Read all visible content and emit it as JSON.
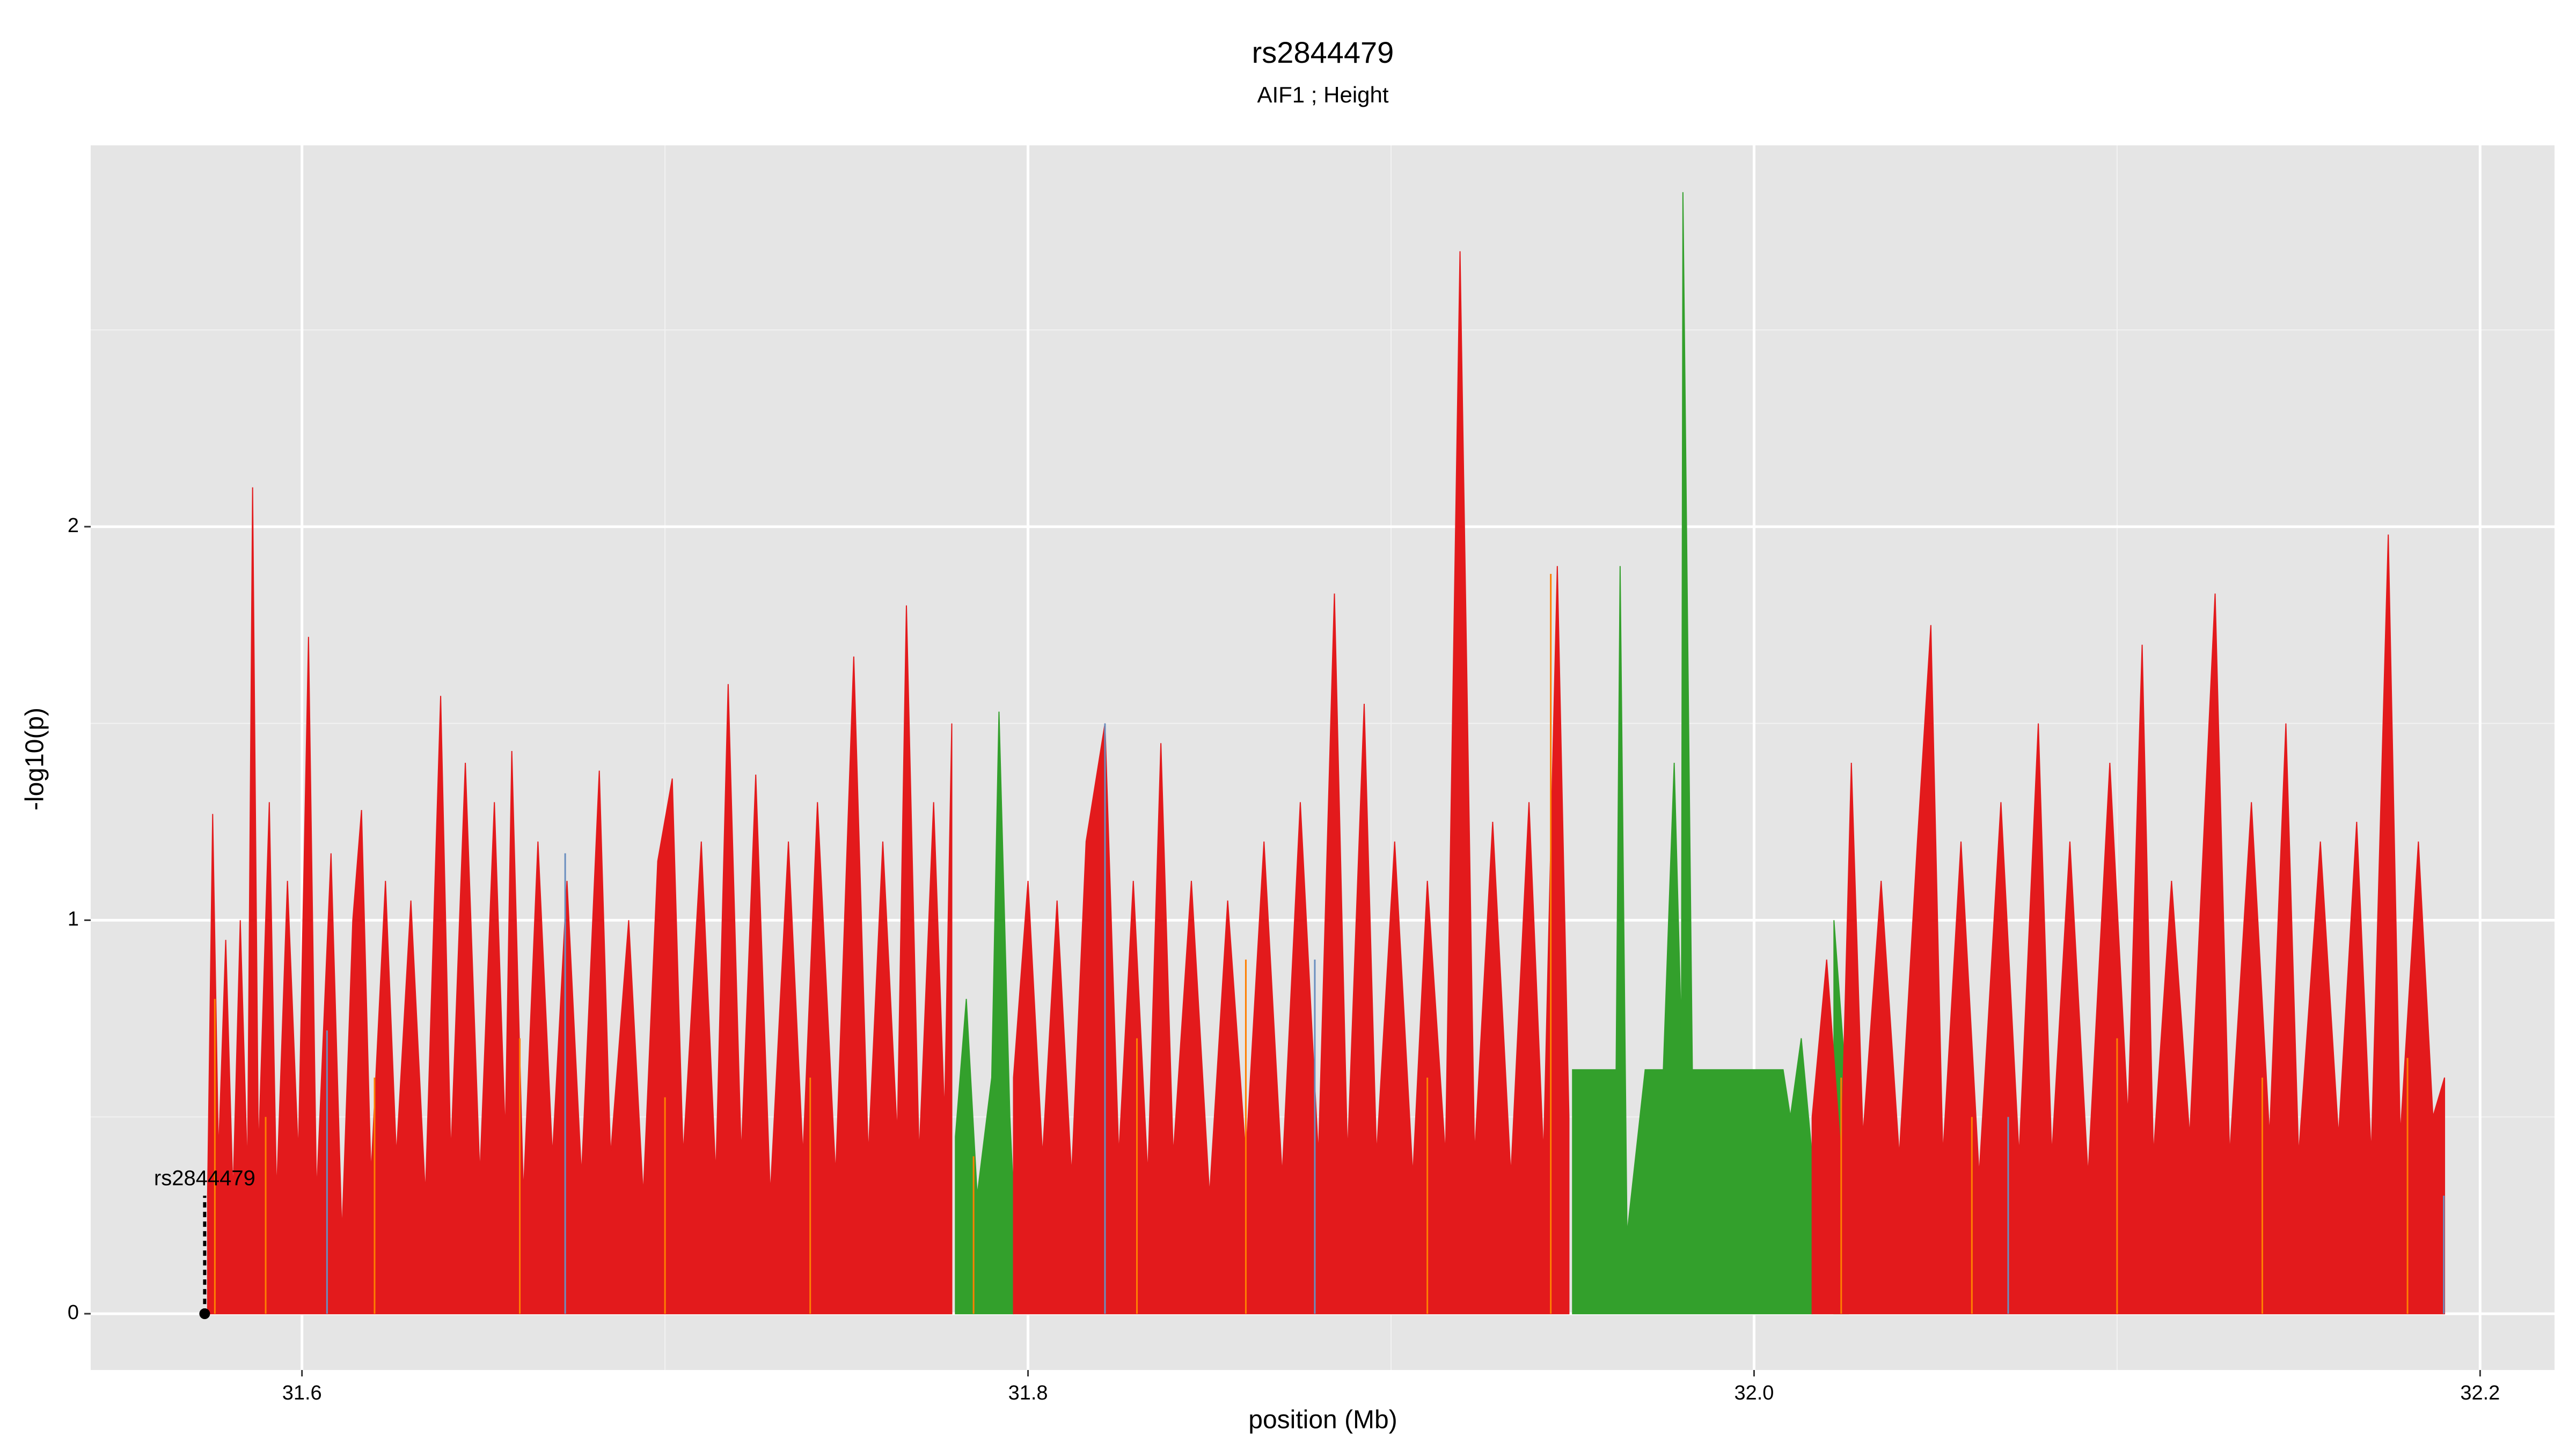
{
  "chart_data": {
    "type": "area",
    "title": "rs2844479",
    "subtitle": "AIF1 ; Height",
    "xlabel": "position (Mb)",
    "ylabel": "-log10(p)",
    "xlim": [
      31.5418,
      32.2205
    ],
    "ylim": [
      -0.143,
      2.969
    ],
    "xticks": [
      31.6,
      31.8,
      {
        "value": 32,
        "label": "32.0"
      },
      32.2
    ],
    "yticks": [
      0,
      1,
      2
    ],
    "x_minor_grid": [
      31.7,
      31.9,
      32.1
    ],
    "y_minor_grid": [
      0.5,
      1.5,
      2.5
    ],
    "grid": true,
    "background": "#e5e5e5",
    "series": [
      {
        "name": "green",
        "color": "#33a02c",
        "style": "area",
        "x": [
          31.78,
          31.783,
          31.786,
          31.79,
          31.792,
          31.795,
          31.796,
          31.8,
          31.95,
          31.962,
          31.9631,
          31.965,
          31.97,
          31.975,
          31.978,
          31.98,
          31.9804,
          31.983,
          32.008,
          32.01,
          32.013,
          32.016,
          32.02,
          32.022,
          32.026
        ],
        "values": [
          0.45,
          0.8,
          0.3,
          0.6,
          1.53,
          0.5,
          0.3,
          null,
          0.62,
          0.62,
          1.9,
          0.2,
          0.62,
          0.62,
          1.4,
          0.7,
          2.85,
          0.62,
          0.62,
          0.5,
          0.7,
          0.4,
          null,
          1.0,
          0.5
        ]
      },
      {
        "name": "red",
        "color": "#e31a1c",
        "style": "area",
        "x": [
          31.574,
          31.5754,
          31.577,
          31.579,
          31.581,
          31.583,
          31.585,
          31.5864,
          31.588,
          31.591,
          31.593,
          31.596,
          31.599,
          31.6018,
          31.604,
          31.608,
          31.611,
          31.614,
          31.6164,
          31.619,
          31.623,
          31.626,
          31.63,
          31.634,
          31.6382,
          31.641,
          31.645,
          31.649,
          31.653,
          31.656,
          31.6578,
          31.661,
          31.665,
          31.669,
          31.673,
          31.677,
          31.6819,
          31.685,
          31.69,
          31.694,
          31.698,
          31.702,
          31.705,
          31.71,
          31.714,
          31.7174,
          31.721,
          31.725,
          31.729,
          31.734,
          31.738,
          31.742,
          31.747,
          31.752,
          31.756,
          31.76,
          31.764,
          31.7665,
          31.77,
          31.774,
          31.777,
          31.779,
          31.788,
          31.796,
          31.8,
          31.804,
          31.808,
          31.812,
          31.816,
          31.8212,
          31.825,
          31.829,
          31.833,
          31.8366,
          31.84,
          31.845,
          31.85,
          31.855,
          31.86,
          31.865,
          31.87,
          31.875,
          31.88,
          31.8844,
          31.888,
          31.8926,
          31.896,
          31.901,
          31.906,
          31.91,
          31.915,
          31.919,
          31.923,
          31.928,
          31.933,
          31.938,
          31.942,
          31.9458,
          31.949,
          31.97,
          32.016,
          32.02,
          32.024,
          32.0268,
          32.03,
          32.035,
          32.04,
          32.045,
          32.0487,
          32.052,
          32.057,
          32.062,
          32.068,
          32.073,
          32.0783,
          32.082,
          32.087,
          32.092,
          32.098,
          32.103,
          32.1069,
          32.11,
          32.115,
          32.12,
          32.127,
          32.131,
          32.137,
          32.142,
          32.1465,
          32.15,
          32.156,
          32.161,
          32.166,
          32.17,
          32.1747,
          32.178,
          32.183,
          32.187,
          32.1902
        ],
        "values": [
          0.3,
          1.27,
          0.4,
          0.95,
          0.3,
          1.0,
          0.35,
          2.1,
          0.4,
          1.3,
          0.3,
          1.1,
          0.4,
          1.72,
          0.3,
          1.17,
          0.2,
          1.0,
          1.28,
          0.35,
          1.1,
          0.4,
          1.05,
          0.3,
          1.57,
          0.4,
          1.4,
          0.35,
          1.3,
          0.45,
          1.43,
          0.3,
          1.2,
          0.4,
          1.1,
          0.35,
          1.38,
          0.4,
          1.0,
          0.3,
          1.15,
          1.36,
          0.4,
          1.2,
          0.35,
          1.6,
          0.4,
          1.37,
          0.3,
          1.2,
          0.4,
          1.3,
          0.35,
          1.67,
          0.4,
          1.2,
          0.45,
          1.8,
          0.4,
          1.3,
          0.5,
          1.5,
          null,
          0.6,
          1.1,
          0.4,
          1.05,
          0.35,
          1.2,
          1.5,
          0.4,
          1.1,
          0.35,
          1.45,
          0.4,
          1.1,
          0.3,
          1.05,
          0.4,
          1.2,
          0.35,
          1.3,
          0.4,
          1.83,
          0.4,
          1.55,
          0.4,
          1.2,
          0.35,
          1.1,
          0.4,
          2.7,
          0.4,
          1.25,
          0.35,
          1.3,
          0.4,
          1.9,
          0.5,
          null,
          0.5,
          0.9,
          0.4,
          1.4,
          0.45,
          1.1,
          0.4,
          1.2,
          1.75,
          0.4,
          1.2,
          0.35,
          1.3,
          0.4,
          1.5,
          0.4,
          1.2,
          0.35,
          1.4,
          0.5,
          1.7,
          0.4,
          1.1,
          0.45,
          1.83,
          0.4,
          1.3,
          0.45,
          1.5,
          0.4,
          1.2,
          0.45,
          1.25,
          0.4,
          1.98,
          0.45,
          1.2,
          0.5,
          0.6
        ]
      },
      {
        "name": "orange",
        "color": "#ff7f00",
        "style": "spike",
        "x": [
          31.576,
          31.59,
          31.62,
          31.66,
          31.7,
          31.74,
          31.785,
          31.83,
          31.86,
          31.91,
          31.944,
          32.024,
          32.06,
          32.1,
          32.14,
          32.18
        ],
        "values": [
          0.8,
          0.5,
          0.6,
          0.7,
          0.55,
          0.6,
          0.4,
          0.7,
          0.9,
          0.6,
          1.88,
          0.6,
          0.5,
          0.7,
          0.6,
          0.65
        ]
      },
      {
        "name": "blue",
        "color": "#6a8fc0",
        "style": "spike",
        "x": [
          31.6069,
          31.6725,
          31.8212,
          31.879,
          32.07,
          32.19
        ],
        "values": [
          0.72,
          1.17,
          1.5,
          0.9,
          0.5,
          0.3
        ]
      }
    ],
    "annotation": {
      "text": "rs2844479",
      "x": 31.5732,
      "y": 0,
      "line_top": 0.3
    }
  }
}
